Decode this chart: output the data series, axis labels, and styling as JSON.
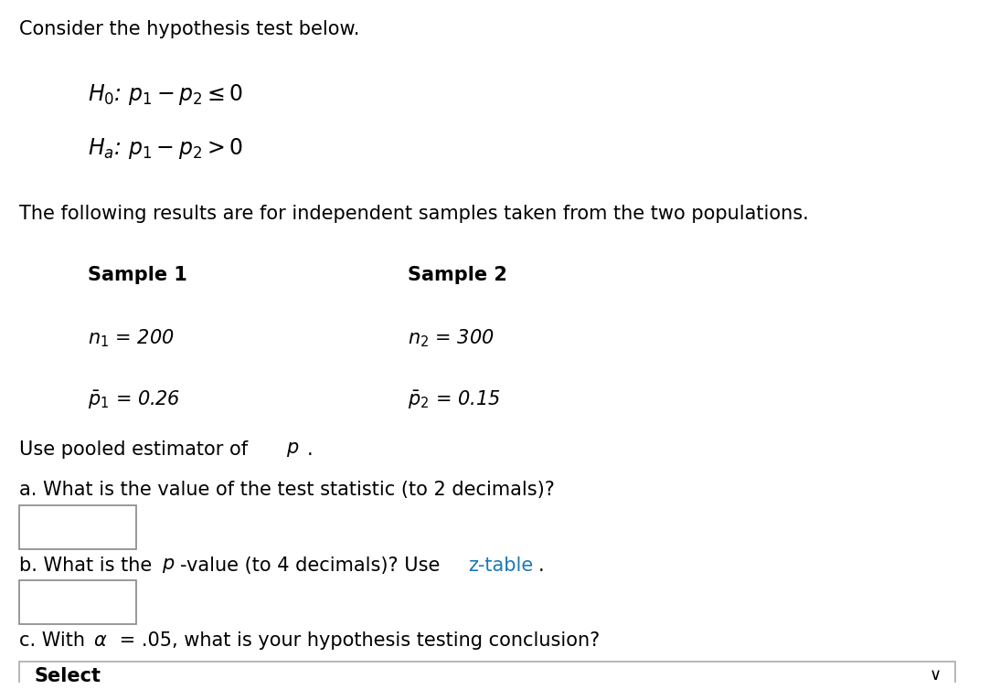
{
  "bg_color": "#ffffff",
  "text_color": "#000000",
  "blue_color": "#1a7ab5",
  "line1": "Consider the hypothesis test below.",
  "desc_line": "The following results are for independent samples taken from the two populations.",
  "sample1_header": "Sample 1",
  "sample2_header": "Sample 2",
  "q_a": "a. What is the value of the test statistic (to 2 decimals)?",
  "q_b_ztable": "z-table",
  "select_text": "Select",
  "font_size_main": 15,
  "font_size_hyp": 17
}
